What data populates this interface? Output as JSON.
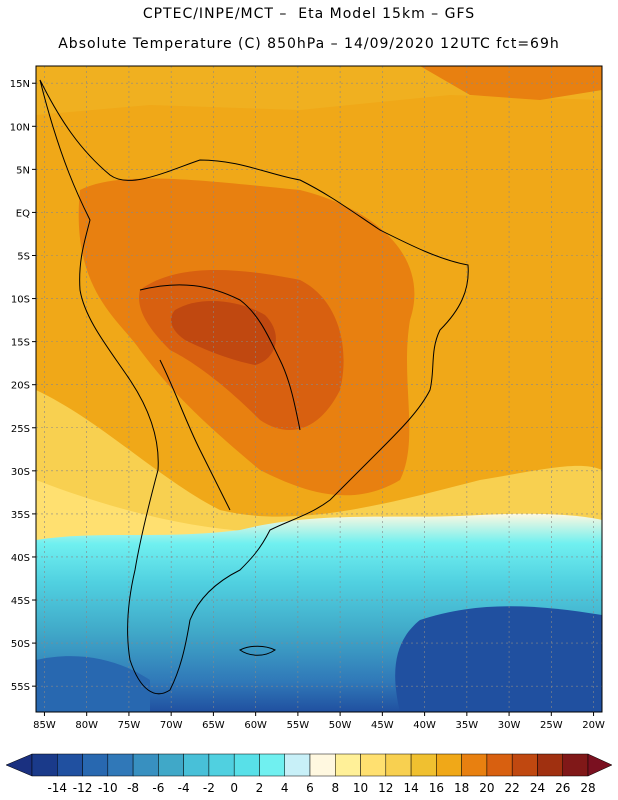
{
  "header": {
    "line1": "CPTEC/INPE/MCT –  Eta Model 15km – GFS",
    "line2": "Absolute Temperature (C) 850hPa – 14/09/2020 12UTC fct=69h"
  },
  "map": {
    "region": "South America",
    "field": "Absolute Temperature (C) 850hPa",
    "lat_ticks": [
      "15N",
      "10N",
      "5N",
      "EQ",
      "5S",
      "10S",
      "15S",
      "20S",
      "25S",
      "30S",
      "35S",
      "40S",
      "45S",
      "50S",
      "55S"
    ],
    "lon_ticks": [
      "85W",
      "80W",
      "75W",
      "70W",
      "65W",
      "60W",
      "55W",
      "50W",
      "45W",
      "40W",
      "35W",
      "30W",
      "25W",
      "20W"
    ],
    "lon_range": [
      -86,
      -19
    ],
    "lat_range": [
      -58,
      17
    ],
    "background_color": "#f0a818"
  },
  "colorbar": {
    "labels": [
      "-14",
      "-12",
      "-10",
      "-8",
      "-6",
      "-4",
      "-2",
      "0",
      "2",
      "4",
      "6",
      "8",
      "10",
      "12",
      "14",
      "16",
      "18",
      "20",
      "22",
      "24",
      "26",
      "28"
    ],
    "colors": [
      "#1a3a8a",
      "#2050a0",
      "#2868b0",
      "#3078b8",
      "#3890c0",
      "#40a8c8",
      "#48c0d8",
      "#50d0e0",
      "#58e0e8",
      "#70f0f0",
      "#c8f0f8",
      "#fff8e0",
      "#fff098",
      "#ffe070",
      "#f8d050",
      "#f0c030",
      "#f0a818",
      "#e88010",
      "#d86010",
      "#c04810",
      "#a03010",
      "#801818"
    ],
    "min_color": "#1a3080",
    "max_color": "#7a1020"
  }
}
